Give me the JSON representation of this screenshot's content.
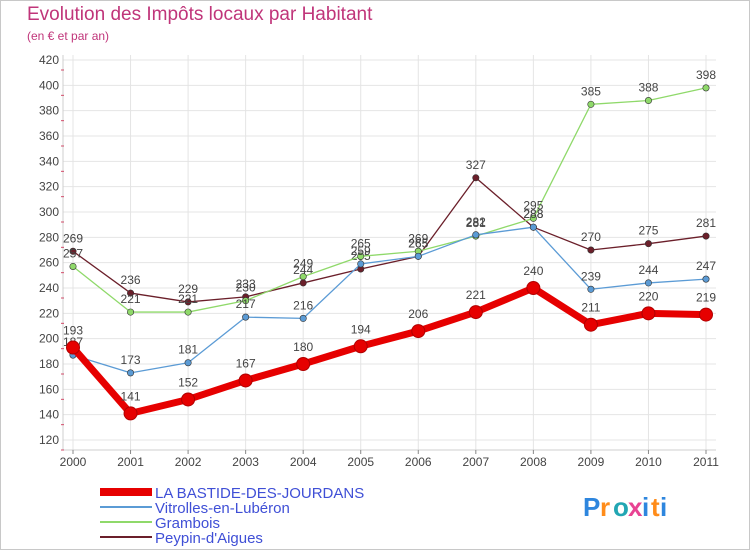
{
  "title": "Evolution des Impôts locaux par Habitant",
  "subtitle": "(en € et par an)",
  "logo_text": "Proxiti",
  "chart_data": {
    "type": "line",
    "title": "Evolution des Impôts locaux par Habitant",
    "subtitle": "(en € et par an)",
    "x": [
      "2000",
      "2001",
      "2002",
      "2003",
      "2004",
      "2005",
      "2006",
      "2007",
      "2008",
      "2009",
      "2010",
      "2011"
    ],
    "ylim": [
      120,
      420
    ],
    "yticks": [
      120,
      140,
      160,
      180,
      200,
      220,
      240,
      260,
      280,
      300,
      320,
      340,
      360,
      380,
      400,
      420
    ],
    "grid": true,
    "legend_position": "bottom-left",
    "series": [
      {
        "name": "LA BASTIDE-DES-JOURDANS",
        "color": "#e60000",
        "values": [
          193,
          141,
          152,
          167,
          180,
          194,
          206,
          221,
          240,
          211,
          220,
          219
        ]
      },
      {
        "name": "Vitrolles-en-Lubéron",
        "color": "#5b9bd5",
        "values": [
          187,
          173,
          181,
          217,
          216,
          259,
          265,
          282,
          288,
          239,
          244,
          247
        ]
      },
      {
        "name": "Grambois",
        "color": "#8fd96a",
        "values": [
          257,
          221,
          221,
          230,
          249,
          265,
          269,
          281,
          295,
          385,
          388,
          398
        ]
      },
      {
        "name": "Peypin-d'Aigues",
        "color": "#6b1f2a",
        "values": [
          269,
          236,
          229,
          233,
          244,
          255,
          265,
          327,
          288,
          270,
          275,
          281
        ]
      }
    ]
  }
}
